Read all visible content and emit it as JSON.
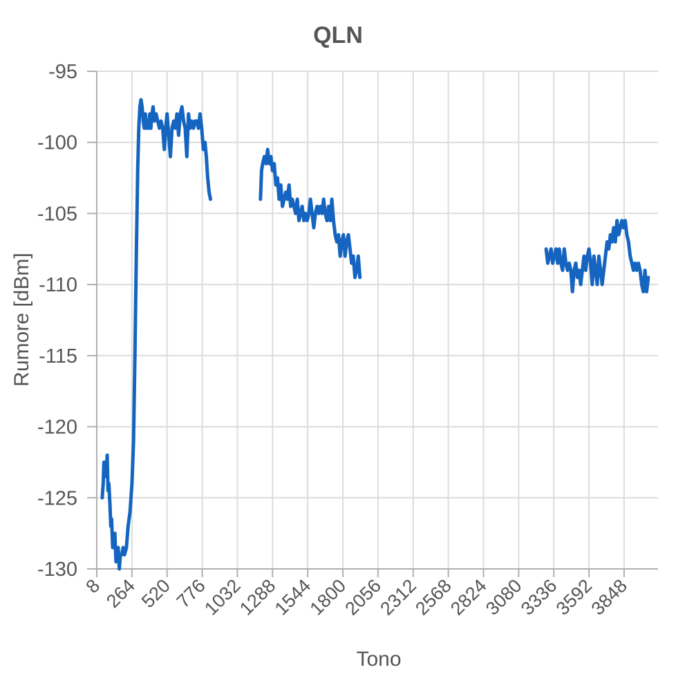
{
  "chart_data": {
    "type": "line",
    "title": "QLN",
    "xlabel": "Tono",
    "ylabel": "Rumore [dBm]",
    "x_ticks": [
      8,
      264,
      520,
      776,
      1032,
      1288,
      1544,
      1800,
      2056,
      2312,
      2568,
      2824,
      3080,
      3336,
      3592,
      3848
    ],
    "xlim": [
      8,
      4095
    ],
    "y_ticks": [
      -95,
      -100,
      -105,
      -110,
      -115,
      -120,
      -125,
      -130
    ],
    "ylim": [
      -130,
      -95
    ],
    "grid": true,
    "legend": "none",
    "series": [
      {
        "color": "#1565c0",
        "segments": [
          [
            [
              48,
              -125
            ],
            [
              55,
              -124
            ],
            [
              60,
              -122.5
            ],
            [
              70,
              -122.5
            ],
            [
              76,
              -123.5
            ],
            [
              84,
              -122
            ],
            [
              90,
              -124.5
            ],
            [
              96,
              -124
            ],
            [
              104,
              -125.5
            ],
            [
              110,
              -127
            ],
            [
              116,
              -126.5
            ],
            [
              124,
              -128.5
            ],
            [
              132,
              -128.5
            ],
            [
              140,
              -127.5
            ],
            [
              148,
              -129.5
            ],
            [
              156,
              -129
            ],
            [
              164,
              -128.5
            ],
            [
              172,
              -130
            ],
            [
              180,
              -129
            ],
            [
              190,
              -129
            ],
            [
              200,
              -128.5
            ],
            [
              210,
              -129
            ],
            [
              224,
              -128.5
            ],
            [
              236,
              -127
            ],
            [
              250,
              -126
            ],
            [
              264,
              -124
            ],
            [
              276,
              -121
            ],
            [
              286,
              -115
            ],
            [
              296,
              -108
            ],
            [
              306,
              -102
            ],
            [
              314,
              -99
            ],
            [
              322,
              -97.5
            ],
            [
              330,
              -97
            ],
            [
              338,
              -97.5
            ],
            [
              346,
              -98.5
            ],
            [
              354,
              -99
            ],
            [
              362,
              -98
            ],
            [
              370,
              -99
            ],
            [
              378,
              -98.5
            ],
            [
              386,
              -99
            ],
            [
              394,
              -98
            ],
            [
              402,
              -99
            ],
            [
              410,
              -98
            ],
            [
              418,
              -97.5
            ],
            [
              428,
              -98.5
            ],
            [
              440,
              -98
            ],
            [
              452,
              -98.5
            ],
            [
              464,
              -99
            ],
            [
              476,
              -98.5
            ],
            [
              488,
              -99
            ],
            [
              500,
              -100.5
            ],
            [
              510,
              -99
            ],
            [
              520,
              -98
            ],
            [
              532,
              -99.5
            ],
            [
              544,
              -101
            ],
            [
              556,
              -99
            ],
            [
              568,
              -98.5
            ],
            [
              580,
              -99
            ],
            [
              592,
              -98
            ],
            [
              604,
              -99.5
            ],
            [
              616,
              -98
            ],
            [
              628,
              -97.5
            ],
            [
              640,
              -98.5
            ],
            [
              652,
              -99
            ],
            [
              664,
              -101
            ],
            [
              676,
              -98
            ],
            [
              688,
              -99
            ],
            [
              700,
              -98.5
            ],
            [
              712,
              -99
            ],
            [
              724,
              -98.5
            ],
            [
              736,
              -98.5
            ],
            [
              748,
              -99
            ],
            [
              760,
              -98
            ],
            [
              772,
              -99
            ],
            [
              784,
              -100.5
            ],
            [
              796,
              -100
            ],
            [
              806,
              -101
            ],
            [
              816,
              -102.5
            ],
            [
              826,
              -103.5
            ],
            [
              836,
              -104
            ]
          ],
          [
            [
              1200,
              -104
            ],
            [
              1208,
              -102
            ],
            [
              1216,
              -101.5
            ],
            [
              1228,
              -101
            ],
            [
              1240,
              -101.5
            ],
            [
              1252,
              -100.5
            ],
            [
              1264,
              -101.5
            ],
            [
              1276,
              -101
            ],
            [
              1288,
              -102
            ],
            [
              1300,
              -101.5
            ],
            [
              1312,
              -103
            ],
            [
              1324,
              -102.5
            ],
            [
              1336,
              -104
            ],
            [
              1348,
              -103
            ],
            [
              1360,
              -104.5
            ],
            [
              1372,
              -104
            ],
            [
              1384,
              -103.5
            ],
            [
              1396,
              -104
            ],
            [
              1408,
              -103
            ],
            [
              1420,
              -104.5
            ],
            [
              1432,
              -104
            ],
            [
              1444,
              -104.5
            ],
            [
              1456,
              -105
            ],
            [
              1468,
              -104
            ],
            [
              1480,
              -105.5
            ],
            [
              1492,
              -105
            ],
            [
              1504,
              -104.5
            ],
            [
              1516,
              -105.5
            ],
            [
              1528,
              -105
            ],
            [
              1540,
              -105.5
            ],
            [
              1552,
              -105
            ],
            [
              1564,
              -104
            ],
            [
              1576,
              -105
            ],
            [
              1588,
              -106
            ],
            [
              1600,
              -105
            ],
            [
              1612,
              -104.5
            ],
            [
              1624,
              -105
            ],
            [
              1636,
              -104.5
            ],
            [
              1648,
              -105
            ],
            [
              1660,
              -104
            ],
            [
              1672,
              -105
            ],
            [
              1684,
              -105.5
            ],
            [
              1696,
              -104.5
            ],
            [
              1708,
              -105.5
            ],
            [
              1720,
              -104
            ],
            [
              1732,
              -105.5
            ],
            [
              1744,
              -106.5
            ],
            [
              1756,
              -107
            ],
            [
              1768,
              -106.5
            ],
            [
              1780,
              -108
            ],
            [
              1792,
              -107
            ],
            [
              1804,
              -106.5
            ],
            [
              1816,
              -108
            ],
            [
              1828,
              -107
            ],
            [
              1840,
              -106.5
            ],
            [
              1852,
              -107.5
            ],
            [
              1864,
              -108.5
            ],
            [
              1876,
              -108
            ],
            [
              1888,
              -109.5
            ],
            [
              1900,
              -109
            ],
            [
              1912,
              -108
            ],
            [
              1924,
              -109.5
            ]
          ],
          [
            [
              3280,
              -107.5
            ],
            [
              3292,
              -108.5
            ],
            [
              3304,
              -108
            ],
            [
              3316,
              -107.5
            ],
            [
              3328,
              -108.5
            ],
            [
              3340,
              -108
            ],
            [
              3352,
              -107.5
            ],
            [
              3364,
              -108.5
            ],
            [
              3376,
              -107.5
            ],
            [
              3388,
              -108.5
            ],
            [
              3400,
              -109
            ],
            [
              3412,
              -107.5
            ],
            [
              3424,
              -108.5
            ],
            [
              3436,
              -109
            ],
            [
              3448,
              -108.5
            ],
            [
              3460,
              -109
            ],
            [
              3472,
              -110.5
            ],
            [
              3484,
              -109
            ],
            [
              3496,
              -108.5
            ],
            [
              3508,
              -109.5
            ],
            [
              3520,
              -109
            ],
            [
              3532,
              -110
            ],
            [
              3544,
              -109
            ],
            [
              3556,
              -108
            ],
            [
              3568,
              -109
            ],
            [
              3580,
              -108
            ],
            [
              3592,
              -107.5
            ],
            [
              3604,
              -108.5
            ],
            [
              3616,
              -110
            ],
            [
              3628,
              -108
            ],
            [
              3640,
              -109
            ],
            [
              3652,
              -110
            ],
            [
              3664,
              -108
            ],
            [
              3676,
              -109
            ],
            [
              3688,
              -110
            ],
            [
              3700,
              -109
            ],
            [
              3712,
              -108
            ],
            [
              3724,
              -107
            ],
            [
              3736,
              -107.5
            ],
            [
              3748,
              -106.5
            ],
            [
              3760,
              -107
            ],
            [
              3772,
              -106
            ],
            [
              3784,
              -107
            ],
            [
              3796,
              -105.5
            ],
            [
              3808,
              -106.5
            ],
            [
              3820,
              -106
            ],
            [
              3832,
              -105.5
            ],
            [
              3844,
              -106
            ],
            [
              3856,
              -105.5
            ],
            [
              3868,
              -106.5
            ],
            [
              3880,
              -107
            ],
            [
              3892,
              -108
            ],
            [
              3904,
              -108.5
            ],
            [
              3916,
              -109
            ],
            [
              3928,
              -108.5
            ],
            [
              3940,
              -109
            ],
            [
              3952,
              -108.5
            ],
            [
              3964,
              -109
            ],
            [
              3976,
              -110
            ],
            [
              3988,
              -110.5
            ],
            [
              4000,
              -109
            ],
            [
              4012,
              -110.5
            ],
            [
              4024,
              -109.5
            ]
          ]
        ]
      }
    ]
  }
}
